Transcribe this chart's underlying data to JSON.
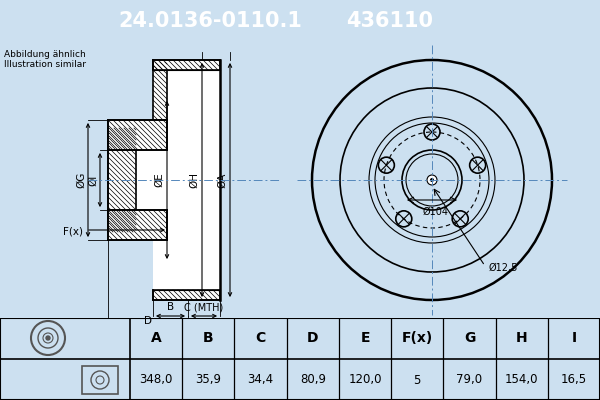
{
  "title_part_number": "24.0136-0110.1",
  "title_ref_number": "436110",
  "header_bg": "#1565c0",
  "header_text_color": "#ffffff",
  "bg_color": "#cce0f0",
  "drawing_bg": "#cce0f0",
  "note_line1": "Abbildung ähnlich",
  "note_line2": "Illustration similar",
  "dim_label_104": "Ø104",
  "dim_label_125": "Ø12,5",
  "col_headers": [
    "A",
    "B",
    "C",
    "D",
    "E",
    "F(x)",
    "G",
    "H",
    "I"
  ],
  "col_values": [
    "348,0",
    "35,9",
    "34,4",
    "80,9",
    "120,0",
    "5",
    "79,0",
    "154,0",
    "16,5"
  ]
}
